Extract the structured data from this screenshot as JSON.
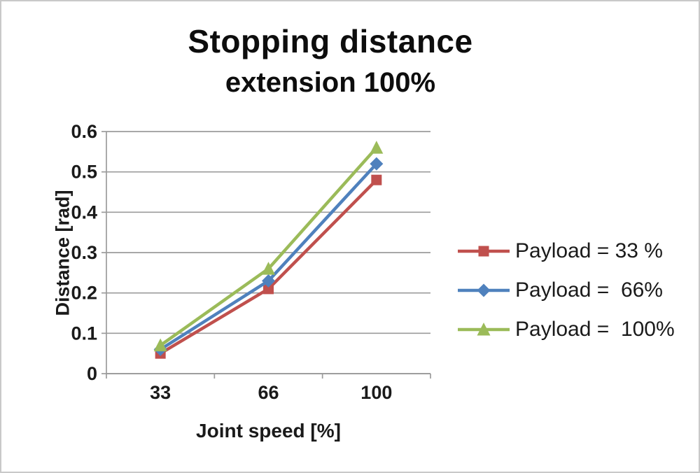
{
  "chart_data": {
    "type": "line",
    "title": "Stopping distance",
    "subtitle": "extension 100%",
    "xlabel": "Joint speed [%]",
    "ylabel": "Distance [rad]",
    "categories": [
      "33",
      "66",
      "100"
    ],
    "ylim": [
      0,
      0.6
    ],
    "ytick_step": 0.1,
    "grid": true,
    "legend_position": "right",
    "axis_color": "#9b9b9b",
    "series": [
      {
        "name": "Payload = 33 %",
        "marker": "square",
        "color": "#C0504D",
        "values": [
          0.05,
          0.21,
          0.48
        ]
      },
      {
        "name": "Payload =  66%",
        "marker": "diamond",
        "color": "#4F81BD",
        "values": [
          0.06,
          0.23,
          0.52
        ]
      },
      {
        "name": "Payload =  100%",
        "marker": "triangle",
        "color": "#9BBB59",
        "values": [
          0.07,
          0.26,
          0.56
        ]
      }
    ]
  }
}
